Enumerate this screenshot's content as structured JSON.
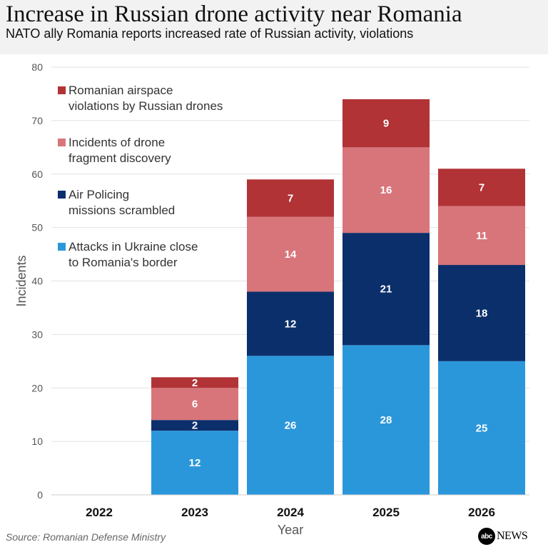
{
  "header": {
    "title": "Increase in Russian drone activity near Romania",
    "subtitle": "NATO ally Romania reports increased rate of Russian activity, violations"
  },
  "footer": {
    "source": "Source: Romanian Defense Ministry",
    "logo_abc": "abc",
    "logo_news": "NEWS"
  },
  "chart_data": {
    "type": "bar",
    "stacked": true,
    "categories": [
      "2022",
      "2023",
      "2024",
      "2025",
      "2026"
    ],
    "xlabel": "Year",
    "ylabel": "Incidents",
    "ylim": [
      0,
      80
    ],
    "yticks": [
      0,
      10,
      20,
      30,
      40,
      50,
      60,
      70,
      80
    ],
    "grid": true,
    "legend_position": "top-left",
    "series": [
      {
        "name": "Attacks in Ukraine close to Romania's border",
        "color": "#2b97db",
        "values": [
          0,
          12,
          26,
          28,
          25
        ]
      },
      {
        "name": "Air Policing missions scrambled",
        "color": "#0b2f6b",
        "values": [
          0,
          2,
          12,
          21,
          18
        ]
      },
      {
        "name": "Incidents of drone fragment discovery",
        "color": "#d8757a",
        "values": [
          0,
          6,
          14,
          16,
          11
        ]
      },
      {
        "name": "Romanian airspace violations by Russian drones",
        "color": "#b13336",
        "values": [
          0,
          2,
          7,
          9,
          7
        ]
      }
    ]
  }
}
